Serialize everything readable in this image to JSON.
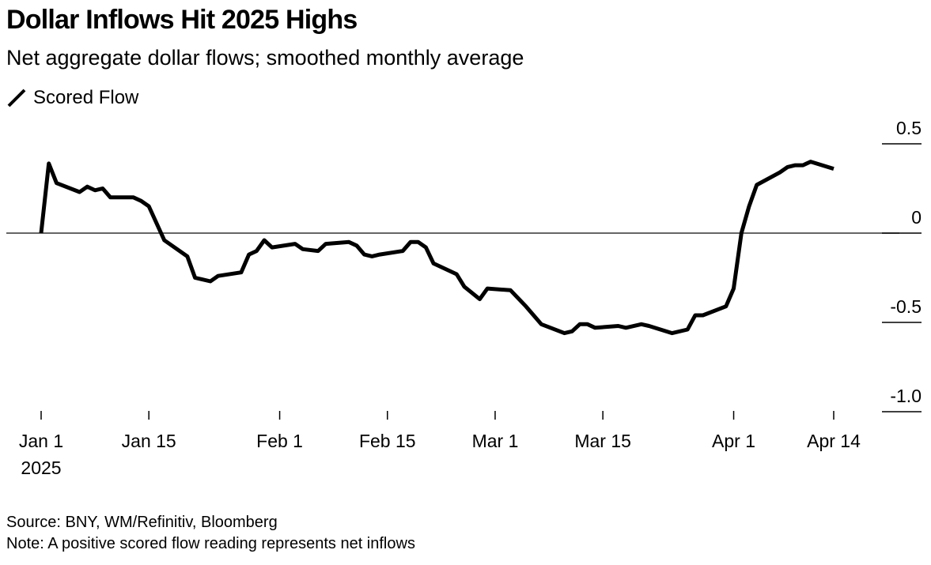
{
  "chart_data": {
    "type": "line",
    "title": "Dollar Inflows Hit 2025 Highs",
    "subtitle": "Net aggregate dollar flows; smoothed monthly average",
    "xlabel": "",
    "ylabel": "",
    "ylim": [
      -1.0,
      0.5
    ],
    "y_ticks": [
      {
        "value": 0.5,
        "label": "0.5"
      },
      {
        "value": 0,
        "label": "0"
      },
      {
        "value": -0.5,
        "label": "-0.5"
      },
      {
        "value": -1.0,
        "label": "-1.0"
      }
    ],
    "x_ticks": [
      {
        "day": 0,
        "label": "Jan 1",
        "sublabel": "2025"
      },
      {
        "day": 14,
        "label": "Jan 15",
        "sublabel": ""
      },
      {
        "day": 31,
        "label": "Feb 1",
        "sublabel": ""
      },
      {
        "day": 45,
        "label": "Feb 15",
        "sublabel": ""
      },
      {
        "day": 59,
        "label": "Mar 1",
        "sublabel": ""
      },
      {
        "day": 73,
        "label": "Mar 15",
        "sublabel": ""
      },
      {
        "day": 90,
        "label": "Apr 1",
        "sublabel": ""
      },
      {
        "day": 103,
        "label": "Apr 14",
        "sublabel": ""
      }
    ],
    "x_unit": "days since Jan 1 2025",
    "xlim": [
      0,
      103
    ],
    "zero_line": true,
    "legend_position": "top-left",
    "series": [
      {
        "name": "Scored Flow",
        "color": "#000000",
        "x": [
          0,
          1,
          2,
          5,
          6,
          7,
          8,
          9,
          12,
          13,
          14,
          16,
          19,
          20,
          22,
          23,
          26,
          27,
          28,
          29,
          30,
          33,
          34,
          36,
          37,
          40,
          41,
          42,
          43,
          44,
          47,
          48,
          49,
          50,
          51,
          54,
          55,
          57,
          58,
          61,
          63,
          65,
          68,
          69,
          70,
          71,
          72,
          75,
          76,
          78,
          79,
          82,
          84,
          85,
          86,
          89,
          90,
          91,
          92,
          93,
          96,
          97,
          98,
          99,
          100,
          103
        ],
        "values": [
          0.0,
          0.39,
          0.28,
          0.23,
          0.26,
          0.24,
          0.25,
          0.2,
          0.2,
          0.18,
          0.15,
          -0.04,
          -0.13,
          -0.25,
          -0.27,
          -0.24,
          -0.22,
          -0.12,
          -0.1,
          -0.04,
          -0.08,
          -0.06,
          -0.09,
          -0.1,
          -0.06,
          -0.05,
          -0.07,
          -0.12,
          -0.13,
          -0.12,
          -0.1,
          -0.05,
          -0.05,
          -0.08,
          -0.17,
          -0.23,
          -0.3,
          -0.37,
          -0.31,
          -0.32,
          -0.41,
          -0.51,
          -0.56,
          -0.55,
          -0.51,
          -0.51,
          -0.53,
          -0.52,
          -0.53,
          -0.51,
          -0.52,
          -0.56,
          -0.54,
          -0.46,
          -0.46,
          -0.41,
          -0.31,
          0.0,
          0.15,
          0.27,
          0.34,
          0.37,
          0.38,
          0.38,
          0.4,
          0.36
        ]
      }
    ]
  },
  "header": {
    "title": "Dollar Inflows Hit 2025 Highs",
    "subtitle": "Net aggregate dollar flows; smoothed monthly average",
    "legend_label": "Scored Flow"
  },
  "footer": {
    "source": "Source: BNY, WM/Refinitiv, Bloomberg",
    "note": "Note: A positive scored flow reading represents net inflows"
  }
}
